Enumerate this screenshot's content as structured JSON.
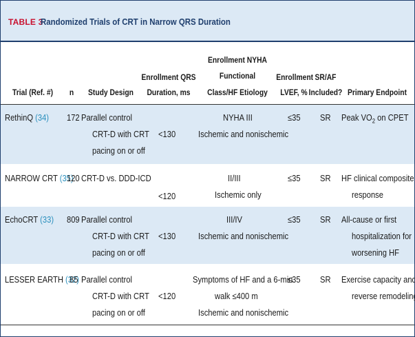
{
  "table": {
    "label": "TABLE 3",
    "title": "Randomized Trials of CRT in Narrow QRS Duration",
    "headers": {
      "trial": "Trial (Ref. #)",
      "n": "n",
      "design": "Study Design",
      "qrs": [
        "Enrollment QRS",
        "Duration, ms"
      ],
      "nyha": [
        "Enrollment NYHA",
        "Functional",
        "Class/HF Etiology"
      ],
      "lvef": [
        "Enrollment",
        "LVEF, %"
      ],
      "sraf": [
        "SR/AF",
        "Included?"
      ],
      "endpoint": "Primary Endpoint"
    },
    "rows": [
      {
        "trial": "RethinQ",
        "ref": "(34)",
        "n": "172",
        "design": [
          "Parallel control",
          "CRT-D with CRT",
          "pacing on or off"
        ],
        "qrs": "<130",
        "nyha": [
          "NYHA III",
          "Ischemic and nonischemic"
        ],
        "lvef": "≤35",
        "sraf": "SR",
        "endpoint": [
          "Peak VO",
          "2",
          " on CPET"
        ]
      },
      {
        "trial": "NARROW CRT",
        "ref": "(35)",
        "n": "120",
        "design": [
          "CRT-D vs. DDD-ICD"
        ],
        "qrs": "<120",
        "nyha": [
          "II/III",
          "Ischemic only"
        ],
        "lvef": "≤35",
        "sraf": "SR",
        "endpoint": [
          "HF clinical composite",
          "response"
        ]
      },
      {
        "trial": "EchoCRT",
        "ref": "(33)",
        "n": "809",
        "design": [
          "Parallel control",
          "CRT-D with CRT",
          "pacing on or off"
        ],
        "qrs": "<130",
        "nyha": [
          "III/IV",
          "Ischemic and nonischemic"
        ],
        "lvef": "≤35",
        "sraf": "SR",
        "endpoint": [
          "All-cause or first",
          "hospitalization for",
          "worsening HF"
        ]
      },
      {
        "trial": "LESSER EARTH",
        "ref": "(32)",
        "n": "85",
        "design": [
          "Parallel control",
          "CRT-D with CRT",
          "pacing on or off"
        ],
        "qrs": "<120",
        "nyha": [
          "Symptoms of HF and a 6-min",
          "walk ≤400 m",
          "Ischemic and nonischemic"
        ],
        "lvef": "≤35",
        "sraf": "SR",
        "endpoint": [
          "Exercise capacity and LV",
          "reverse remodeling"
        ]
      }
    ]
  }
}
